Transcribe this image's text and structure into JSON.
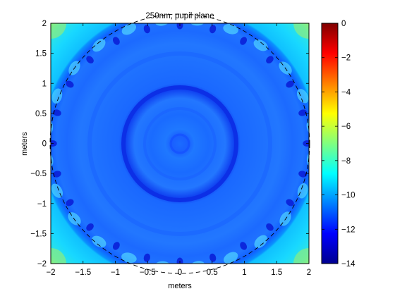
{
  "chart_data": {
    "type": "heatmap",
    "title": "250nm, pupil plane",
    "xlabel": "meters",
    "ylabel": "meters",
    "xlim": [
      -2,
      2
    ],
    "ylim": [
      -2,
      2
    ],
    "xticks": [
      -2,
      -1.5,
      -1,
      -0.5,
      0,
      0.5,
      1,
      1.5,
      2
    ],
    "yticks": [
      -2,
      -1.5,
      -1,
      -0.5,
      0,
      0.5,
      1,
      1.5,
      2
    ],
    "colorbar": {
      "range": [
        -14,
        0
      ],
      "ticks": [
        0,
        -2,
        -4,
        -6,
        -8,
        -10,
        -12,
        -14
      ],
      "colormap": "jet"
    },
    "overlay": {
      "shape": "circle",
      "style": "dashed",
      "center": [
        0,
        0
      ],
      "radius": 2
    },
    "grid": false,
    "colors": {
      "background_field": "#1a78ff",
      "jet": [
        "#00008f",
        "#0000ff",
        "#00ffff",
        "#ffff00",
        "#ff0000",
        "#800000"
      ]
    }
  }
}
